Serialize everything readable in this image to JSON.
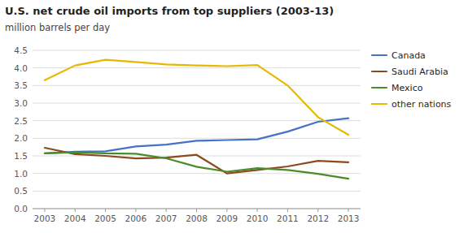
{
  "chart_data": {
    "type": "line",
    "title": "U.S. net crude oil imports from top suppliers (2003-13)",
    "subtitle": "million barrels  per day",
    "x": [
      2003,
      2004,
      2005,
      2006,
      2007,
      2008,
      2009,
      2010,
      2011,
      2012,
      2013
    ],
    "series": [
      {
        "name": "Canada",
        "color": "#4472C4",
        "values": [
          1.57,
          1.62,
          1.63,
          1.77,
          1.82,
          1.93,
          1.95,
          1.97,
          2.19,
          2.47,
          2.57
        ]
      },
      {
        "name": "Saudi Arabia",
        "color": "#8B4A20",
        "values": [
          1.73,
          1.55,
          1.5,
          1.43,
          1.45,
          1.53,
          1.0,
          1.1,
          1.2,
          1.36,
          1.32
        ]
      },
      {
        "name": "Mexico",
        "color": "#4A8C2A",
        "values": [
          1.57,
          1.6,
          1.57,
          1.56,
          1.43,
          1.19,
          1.05,
          1.15,
          1.1,
          0.99,
          0.85
        ]
      },
      {
        "name": "other nations",
        "color": "#E8B800",
        "values": [
          3.65,
          4.07,
          4.23,
          4.17,
          4.1,
          4.07,
          4.05,
          4.08,
          3.5,
          2.6,
          2.1
        ]
      }
    ],
    "xlim": [
      2002.6,
      2013.4
    ],
    "xticks": [
      2003,
      2004,
      2005,
      2006,
      2007,
      2008,
      2009,
      2010,
      2011,
      2012,
      2013
    ],
    "ylim": [
      0.0,
      4.5
    ],
    "yticks": [
      {
        "value": 0,
        "label": "0.0"
      },
      0.5,
      {
        "value": 1,
        "label": "1.0"
      },
      1.5,
      {
        "value": 2,
        "label": "2.0"
      },
      2.5,
      {
        "value": 3,
        "label": "3.0"
      },
      3.5,
      {
        "value": 4,
        "label": "4.0"
      },
      4.5
    ],
    "grid": true,
    "legend": "right"
  }
}
